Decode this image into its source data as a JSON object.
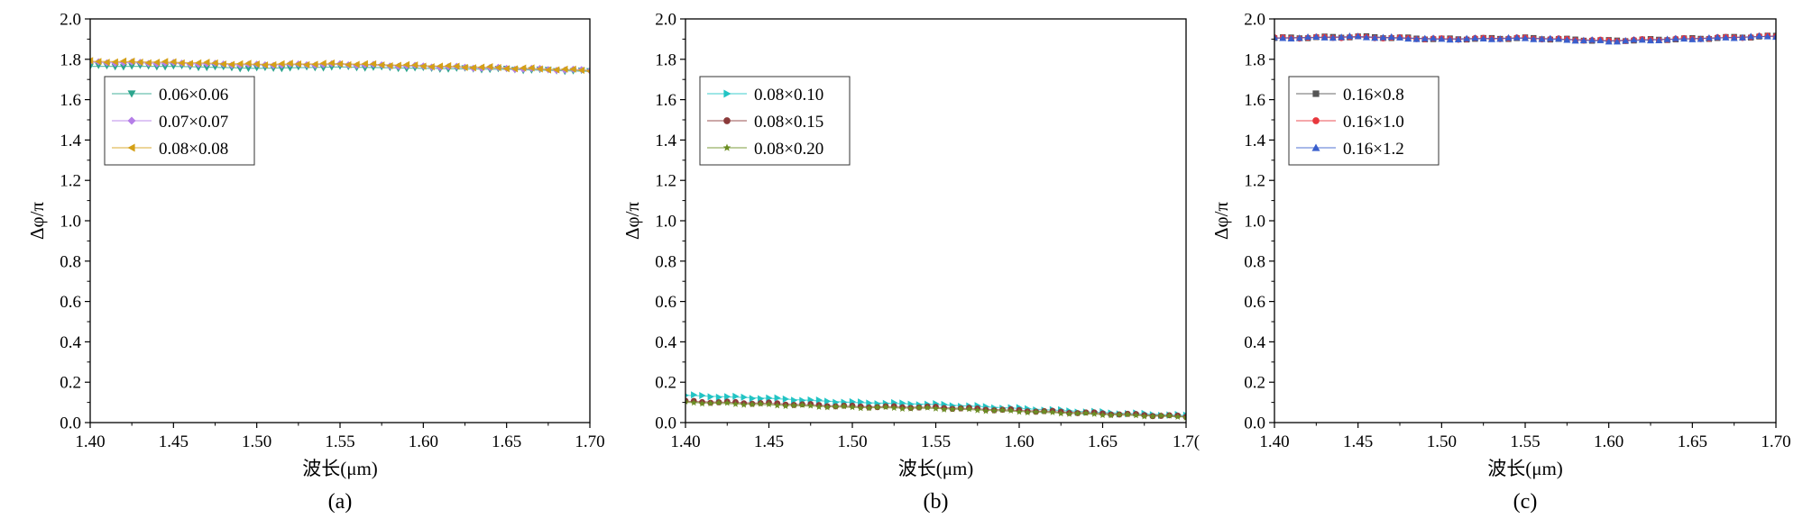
{
  "chart_data": [
    {
      "type": "line",
      "panel_label": "(a)",
      "xlabel": "波长(μm)",
      "ylabel": "Δφ/π",
      "xlim": [
        1.4,
        1.7
      ],
      "ylim": [
        0.0,
        2.0
      ],
      "x_ticks": [
        "1.40",
        "1.45",
        "1.50",
        "1.55",
        "1.60",
        "1.65",
        "1.70"
      ],
      "y_ticks": [
        "0.0",
        "0.2",
        "0.4",
        "0.6",
        "0.8",
        "1.0",
        "1.2",
        "1.4",
        "1.6",
        "1.8",
        "2.0"
      ],
      "grid": false,
      "legend_position": "upper-left",
      "x": [
        1.4,
        1.45,
        1.5,
        1.55,
        1.6,
        1.65,
        1.7
      ],
      "series": [
        {
          "name": "0.06×0.06",
          "color": "#2ca58d",
          "marker": "triangle-down",
          "values": [
            1.765,
            1.765,
            1.755,
            1.762,
            1.755,
            1.75,
            1.74
          ]
        },
        {
          "name": "0.07×0.07",
          "color": "#b57ee8",
          "marker": "diamond",
          "values": [
            1.785,
            1.78,
            1.772,
            1.775,
            1.765,
            1.755,
            1.745
          ]
        },
        {
          "name": "0.08×0.08",
          "color": "#d4a017",
          "marker": "triangle-left",
          "values": [
            1.79,
            1.785,
            1.775,
            1.778,
            1.768,
            1.757,
            1.745
          ]
        }
      ]
    },
    {
      "type": "line",
      "panel_label": "(b)",
      "xlabel": "波长(μm)",
      "ylabel": "Δφ/π",
      "xlim": [
        1.4,
        1.7
      ],
      "ylim": [
        0.0,
        2.0
      ],
      "x_ticks": [
        "1.40",
        "1.45",
        "1.50",
        "1.55",
        "1.60",
        "1.65",
        "1.7("
      ],
      "y_ticks": [
        "0.0",
        "0.2",
        "0.4",
        "0.6",
        "0.8",
        "1.0",
        "1.2",
        "1.4",
        "1.6",
        "1.8",
        "2.0"
      ],
      "grid": false,
      "legend_position": "upper-left",
      "x": [
        1.4,
        1.45,
        1.5,
        1.55,
        1.6,
        1.65,
        1.7
      ],
      "series": [
        {
          "name": "0.08×0.10",
          "color": "#22c4c4",
          "marker": "triangle-right",
          "values": [
            0.135,
            0.12,
            0.1,
            0.09,
            0.07,
            0.05,
            0.035
          ]
        },
        {
          "name": "0.08×0.15",
          "color": "#8b3a3a",
          "marker": "circle",
          "values": [
            0.105,
            0.095,
            0.08,
            0.075,
            0.06,
            0.045,
            0.03
          ]
        },
        {
          "name": "0.08×0.20",
          "color": "#6b8e23",
          "marker": "star",
          "values": [
            0.1,
            0.088,
            0.075,
            0.07,
            0.055,
            0.04,
            0.028
          ]
        }
      ]
    },
    {
      "type": "line",
      "panel_label": "(c)",
      "xlabel": "波长(μm)",
      "ylabel": "Δφ/π",
      "xlim": [
        1.4,
        1.7
      ],
      "ylim": [
        0.0,
        2.0
      ],
      "x_ticks": [
        "1.40",
        "1.45",
        "1.50",
        "1.55",
        "1.60",
        "1.65",
        "1.70"
      ],
      "y_ticks": [
        "0.0",
        "0.2",
        "0.4",
        "0.6",
        "0.8",
        "1.0",
        "1.2",
        "1.4",
        "1.6",
        "1.8",
        "2.0"
      ],
      "grid": false,
      "legend_position": "upper-left",
      "x": [
        1.4,
        1.45,
        1.5,
        1.55,
        1.6,
        1.65,
        1.7
      ],
      "series": [
        {
          "name": "0.16×0.8",
          "color": "#555555",
          "marker": "square",
          "values": [
            1.905,
            1.912,
            1.9,
            1.905,
            1.892,
            1.902,
            1.915
          ]
        },
        {
          "name": "0.16×1.0",
          "color": "#e8383d",
          "marker": "circle",
          "values": [
            1.905,
            1.91,
            1.9,
            1.905,
            1.892,
            1.902,
            1.915
          ]
        },
        {
          "name": "0.16×1.2",
          "color": "#3a5fcd",
          "marker": "triangle-up",
          "values": [
            1.905,
            1.912,
            1.9,
            1.905,
            1.89,
            1.902,
            1.915
          ]
        }
      ]
    }
  ]
}
